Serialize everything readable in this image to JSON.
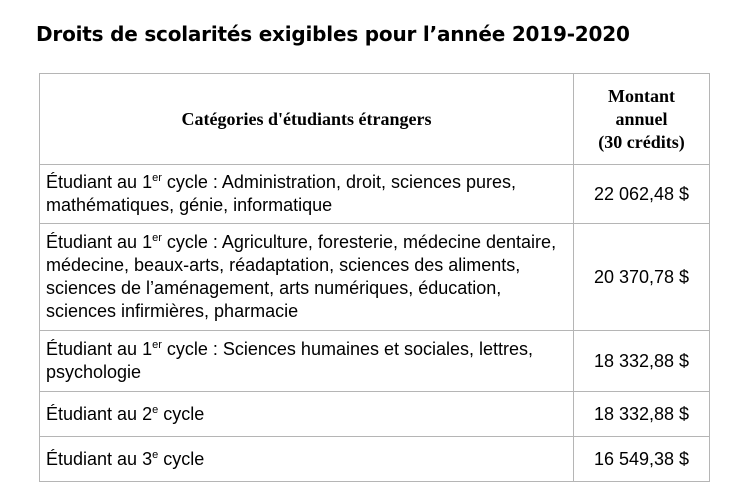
{
  "title": "Droits de scolarités exigibles pour l’année 2019-2020",
  "table": {
    "header_category": "Catégories d'étudiants étrangers",
    "header_amount": [
      "Montant",
      "annuel",
      "(30 crédits)"
    ],
    "rows": [
      {
        "prefix": "Étudiant au 1",
        "sup": "er",
        "text": " cycle : Administration, droit, sciences pures, mathématiques, génie, informatique",
        "amount": "22 062,48 $"
      },
      {
        "prefix": "Étudiant au 1",
        "sup": "er",
        "text": " cycle : Agriculture, foresterie, médecine dentaire, médecine, beaux-arts, réadaptation, sciences des aliments, sciences de l’aménagement, arts numériques, éducation, sciences infirmières, pharmacie",
        "amount": "20 370,78 $"
      },
      {
        "prefix": "Étudiant au 1",
        "sup": "er",
        "text": " cycle : Sciences humaines et sociales, lettres, psychologie",
        "amount": "18 332,88 $"
      },
      {
        "prefix": "Étudiant au 2",
        "sup": "e",
        "text": " cycle",
        "amount": "18 332,88 $"
      },
      {
        "prefix": "Étudiant au 3",
        "sup": "e",
        "text": " cycle",
        "amount": "16 549,38 $"
      }
    ]
  }
}
